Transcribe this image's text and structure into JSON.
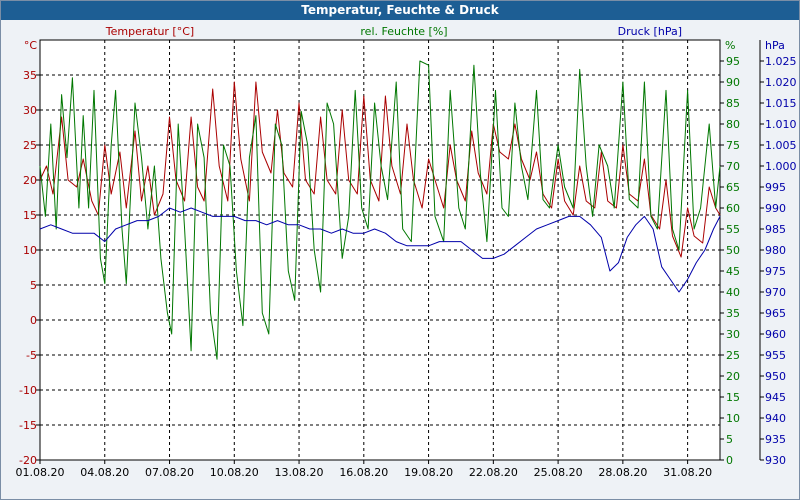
{
  "window": {
    "title": "Temperatur, Feuchte & Druck"
  },
  "chart_data": {
    "type": "line",
    "title": "Temperatur, Feuchte & Druck",
    "grid": true,
    "colors": {
      "temperature": "#aa0000",
      "humidity": "#007700",
      "pressure": "#0000aa",
      "grid": "#000000"
    },
    "x_axis": {
      "tick_labels": [
        "01.08.20",
        "04.08.20",
        "07.08.20",
        "10.08.20",
        "13.08.20",
        "16.08.20",
        "19.08.20",
        "22.08.20",
        "25.08.20",
        "28.08.20",
        "31.08.20"
      ],
      "range_days": [
        0,
        31.5
      ]
    },
    "axes": {
      "temperature": {
        "unit_label": "°C",
        "range": [
          -20,
          40
        ],
        "ticks": [
          -20,
          -15,
          -10,
          -5,
          0,
          5,
          10,
          15,
          20,
          25,
          30,
          35
        ]
      },
      "humidity": {
        "unit_label": "%",
        "range": [
          0,
          100
        ],
        "ticks": [
          0,
          5,
          10,
          15,
          20,
          25,
          30,
          35,
          40,
          45,
          50,
          55,
          60,
          65,
          70,
          75,
          80,
          85,
          90,
          95
        ]
      },
      "pressure": {
        "unit_label": "hPa",
        "range": [
          930,
          1030
        ],
        "ticks": [
          "930",
          "935",
          "940",
          "945",
          "950",
          "955",
          "960",
          "965",
          "970",
          "975",
          "980",
          "985",
          "990",
          "995",
          "1.000",
          "1.005",
          "1.010",
          "1.015",
          "1.020",
          "1.025"
        ]
      }
    },
    "series": [
      {
        "name": "Temperatur [°C]",
        "axis": "temperature",
        "points": [
          [
            0.0,
            20
          ],
          [
            0.3,
            22
          ],
          [
            0.6,
            18
          ],
          [
            1.0,
            29
          ],
          [
            1.3,
            20
          ],
          [
            1.7,
            19
          ],
          [
            2.0,
            23
          ],
          [
            2.4,
            17
          ],
          [
            2.7,
            15
          ],
          [
            3.0,
            25
          ],
          [
            3.3,
            18
          ],
          [
            3.7,
            24
          ],
          [
            4.0,
            16
          ],
          [
            4.4,
            27
          ],
          [
            4.7,
            17
          ],
          [
            5.0,
            22
          ],
          [
            5.3,
            15
          ],
          [
            5.7,
            18
          ],
          [
            6.0,
            29
          ],
          [
            6.3,
            20
          ],
          [
            6.7,
            17
          ],
          [
            7.0,
            29
          ],
          [
            7.3,
            19
          ],
          [
            7.6,
            17
          ],
          [
            8.0,
            33
          ],
          [
            8.3,
            22
          ],
          [
            8.7,
            17
          ],
          [
            9.0,
            34
          ],
          [
            9.3,
            23
          ],
          [
            9.7,
            17
          ],
          [
            10.0,
            34
          ],
          [
            10.3,
            24
          ],
          [
            10.7,
            21
          ],
          [
            11.0,
            30
          ],
          [
            11.3,
            21
          ],
          [
            11.7,
            19
          ],
          [
            12.0,
            31
          ],
          [
            12.3,
            20
          ],
          [
            12.7,
            18
          ],
          [
            13.0,
            29
          ],
          [
            13.3,
            20
          ],
          [
            13.7,
            18
          ],
          [
            14.0,
            30
          ],
          [
            14.3,
            20
          ],
          [
            14.7,
            18
          ],
          [
            15.0,
            32
          ],
          [
            15.3,
            20
          ],
          [
            15.7,
            17
          ],
          [
            16.0,
            32
          ],
          [
            16.3,
            22
          ],
          [
            16.7,
            18
          ],
          [
            17.0,
            28
          ],
          [
            17.3,
            20
          ],
          [
            17.7,
            16
          ],
          [
            18.0,
            23
          ],
          [
            18.3,
            20
          ],
          [
            18.7,
            16
          ],
          [
            19.0,
            25
          ],
          [
            19.3,
            20
          ],
          [
            19.7,
            17
          ],
          [
            20.0,
            27
          ],
          [
            20.3,
            21
          ],
          [
            20.7,
            18
          ],
          [
            21.0,
            28
          ],
          [
            21.3,
            24
          ],
          [
            21.7,
            23
          ],
          [
            22.0,
            28
          ],
          [
            22.3,
            23
          ],
          [
            22.7,
            20
          ],
          [
            23.0,
            24
          ],
          [
            23.3,
            18
          ],
          [
            23.7,
            16
          ],
          [
            24.0,
            23
          ],
          [
            24.3,
            17
          ],
          [
            24.7,
            15
          ],
          [
            25.0,
            22
          ],
          [
            25.3,
            17
          ],
          [
            25.7,
            16
          ],
          [
            26.0,
            24
          ],
          [
            26.3,
            17
          ],
          [
            26.7,
            16
          ],
          [
            27.0,
            25
          ],
          [
            27.3,
            18
          ],
          [
            27.7,
            17
          ],
          [
            28.0,
            23
          ],
          [
            28.3,
            15
          ],
          [
            28.7,
            13
          ],
          [
            29.0,
            20
          ],
          [
            29.3,
            12
          ],
          [
            29.7,
            9
          ],
          [
            30.0,
            16
          ],
          [
            30.3,
            12
          ],
          [
            30.7,
            11
          ],
          [
            31.0,
            19
          ],
          [
            31.3,
            16
          ],
          [
            31.5,
            15
          ]
        ]
      },
      {
        "name": "rel. Feuchte [%]",
        "axis": "humidity",
        "points": [
          [
            0.0,
            70
          ],
          [
            0.25,
            58
          ],
          [
            0.5,
            80
          ],
          [
            0.75,
            55
          ],
          [
            1.0,
            87
          ],
          [
            1.25,
            72
          ],
          [
            1.5,
            91
          ],
          [
            1.8,
            60
          ],
          [
            2.0,
            82
          ],
          [
            2.25,
            60
          ],
          [
            2.5,
            88
          ],
          [
            2.8,
            48
          ],
          [
            3.0,
            42
          ],
          [
            3.3,
            75
          ],
          [
            3.5,
            88
          ],
          [
            3.8,
            55
          ],
          [
            4.0,
            42
          ],
          [
            4.4,
            85
          ],
          [
            4.7,
            72
          ],
          [
            5.0,
            55
          ],
          [
            5.3,
            70
          ],
          [
            5.6,
            48
          ],
          [
            5.9,
            35
          ],
          [
            6.1,
            30
          ],
          [
            6.4,
            80
          ],
          [
            6.7,
            55
          ],
          [
            7.0,
            26
          ],
          [
            7.3,
            80
          ],
          [
            7.6,
            72
          ],
          [
            7.9,
            35
          ],
          [
            8.2,
            24
          ],
          [
            8.5,
            75
          ],
          [
            8.8,
            70
          ],
          [
            9.1,
            45
          ],
          [
            9.4,
            32
          ],
          [
            9.7,
            72
          ],
          [
            10.0,
            82
          ],
          [
            10.3,
            35
          ],
          [
            10.6,
            30
          ],
          [
            10.9,
            80
          ],
          [
            11.2,
            75
          ],
          [
            11.5,
            45
          ],
          [
            11.8,
            38
          ],
          [
            12.1,
            83
          ],
          [
            12.4,
            75
          ],
          [
            12.7,
            50
          ],
          [
            13.0,
            40
          ],
          [
            13.3,
            85
          ],
          [
            13.6,
            80
          ],
          [
            14.0,
            48
          ],
          [
            14.3,
            58
          ],
          [
            14.6,
            88
          ],
          [
            14.9,
            60
          ],
          [
            15.2,
            55
          ],
          [
            15.5,
            85
          ],
          [
            15.8,
            70
          ],
          [
            16.1,
            62
          ],
          [
            16.5,
            90
          ],
          [
            16.8,
            55
          ],
          [
            17.2,
            52
          ],
          [
            17.6,
            95
          ],
          [
            18.0,
            94
          ],
          [
            18.3,
            58
          ],
          [
            18.7,
            52
          ],
          [
            19.0,
            88
          ],
          [
            19.4,
            60
          ],
          [
            19.7,
            55
          ],
          [
            20.1,
            94
          ],
          [
            20.4,
            68
          ],
          [
            20.7,
            52
          ],
          [
            21.1,
            88
          ],
          [
            21.4,
            60
          ],
          [
            21.7,
            58
          ],
          [
            22.0,
            85
          ],
          [
            22.3,
            70
          ],
          [
            22.6,
            62
          ],
          [
            23.0,
            88
          ],
          [
            23.3,
            62
          ],
          [
            23.6,
            60
          ],
          [
            24.0,
            75
          ],
          [
            24.3,
            65
          ],
          [
            24.7,
            60
          ],
          [
            25.0,
            93
          ],
          [
            25.3,
            70
          ],
          [
            25.6,
            58
          ],
          [
            25.9,
            75
          ],
          [
            26.3,
            70
          ],
          [
            26.6,
            60
          ],
          [
            27.0,
            90
          ],
          [
            27.3,
            62
          ],
          [
            27.7,
            60
          ],
          [
            28.0,
            90
          ],
          [
            28.3,
            58
          ],
          [
            28.6,
            55
          ],
          [
            29.0,
            88
          ],
          [
            29.3,
            55
          ],
          [
            29.6,
            50
          ],
          [
            30.0,
            88
          ],
          [
            30.3,
            55
          ],
          [
            30.6,
            60
          ],
          [
            31.0,
            80
          ],
          [
            31.3,
            60
          ],
          [
            31.5,
            70
          ]
        ]
      },
      {
        "name": "Druck [hPa]",
        "axis": "pressure",
        "points": [
          [
            0.0,
            985
          ],
          [
            0.5,
            986
          ],
          [
            1.0,
            985
          ],
          [
            1.5,
            984
          ],
          [
            2.0,
            984
          ],
          [
            2.5,
            984
          ],
          [
            3.0,
            982
          ],
          [
            3.5,
            985
          ],
          [
            4.0,
            986
          ],
          [
            4.5,
            987
          ],
          [
            5.0,
            987
          ],
          [
            5.5,
            988
          ],
          [
            6.0,
            990
          ],
          [
            6.5,
            989
          ],
          [
            7.0,
            990
          ],
          [
            7.5,
            989
          ],
          [
            8.0,
            988
          ],
          [
            8.5,
            988
          ],
          [
            9.0,
            988
          ],
          [
            9.5,
            987
          ],
          [
            10.0,
            987
          ],
          [
            10.5,
            986
          ],
          [
            11.0,
            987
          ],
          [
            11.5,
            986
          ],
          [
            12.0,
            986
          ],
          [
            12.5,
            985
          ],
          [
            13.0,
            985
          ],
          [
            13.5,
            984
          ],
          [
            14.0,
            985
          ],
          [
            14.5,
            984
          ],
          [
            15.0,
            984
          ],
          [
            15.5,
            985
          ],
          [
            16.0,
            984
          ],
          [
            16.5,
            982
          ],
          [
            17.0,
            981
          ],
          [
            17.5,
            981
          ],
          [
            18.0,
            981
          ],
          [
            18.5,
            982
          ],
          [
            19.0,
            982
          ],
          [
            19.5,
            982
          ],
          [
            20.0,
            980
          ],
          [
            20.5,
            978
          ],
          [
            21.0,
            978
          ],
          [
            21.5,
            979
          ],
          [
            22.0,
            981
          ],
          [
            22.5,
            983
          ],
          [
            23.0,
            985
          ],
          [
            23.5,
            986
          ],
          [
            24.0,
            987
          ],
          [
            24.5,
            988
          ],
          [
            25.0,
            988
          ],
          [
            25.5,
            986
          ],
          [
            26.0,
            983
          ],
          [
            26.4,
            975
          ],
          [
            26.8,
            977
          ],
          [
            27.2,
            983
          ],
          [
            27.6,
            986
          ],
          [
            28.0,
            988
          ],
          [
            28.4,
            985
          ],
          [
            28.8,
            976
          ],
          [
            29.2,
            973
          ],
          [
            29.6,
            970
          ],
          [
            30.0,
            973
          ],
          [
            30.4,
            977
          ],
          [
            30.8,
            980
          ],
          [
            31.2,
            985
          ],
          [
            31.5,
            988
          ]
        ]
      }
    ]
  }
}
